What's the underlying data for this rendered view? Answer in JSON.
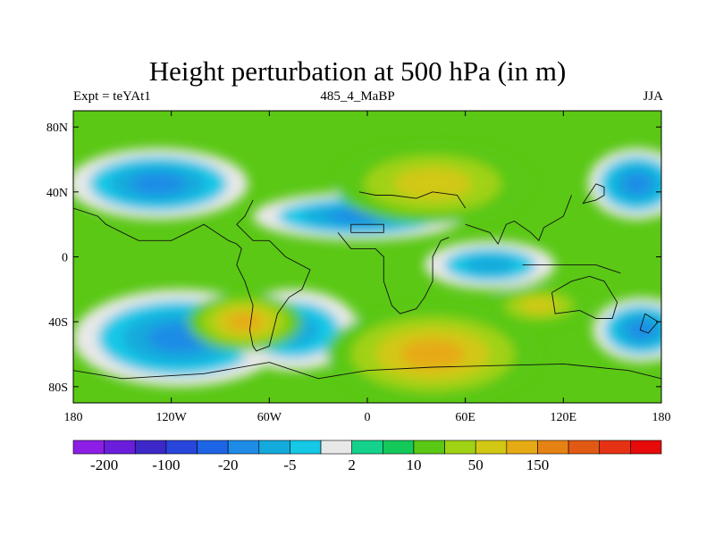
{
  "chart_data": {
    "type": "heatmap",
    "title": "Height perturbation at 500 hPa (in m)",
    "left_label": "Expt = teYAt1",
    "center_label": "485_4_MaBP",
    "right_label": "JJA",
    "x_ticks": [
      {
        "value": -180,
        "label": "180"
      },
      {
        "value": -120,
        "label": "120W"
      },
      {
        "value": -60,
        "label": "60W"
      },
      {
        "value": 0,
        "label": "0"
      },
      {
        "value": 60,
        "label": "60E"
      },
      {
        "value": 120,
        "label": "120E"
      },
      {
        "value": 180,
        "label": "180"
      }
    ],
    "y_ticks": [
      {
        "value": 80,
        "label": "80N"
      },
      {
        "value": 40,
        "label": "40N"
      },
      {
        "value": 0,
        "label": "0"
      },
      {
        "value": -40,
        "label": "40S"
      },
      {
        "value": -80,
        "label": "80S"
      }
    ],
    "xlim": [
      -180,
      180
    ],
    "ylim": [
      -90,
      90
    ],
    "colorbar": {
      "colors": [
        "#8c1ee6",
        "#6a1edc",
        "#3c28c8",
        "#2846dc",
        "#1e64e6",
        "#1e8ce6",
        "#14aadc",
        "#14c8e6",
        "#e8e8e8",
        "#14d28c",
        "#14c85a",
        "#5ac814",
        "#a0d214",
        "#d2c814",
        "#e6aa14",
        "#e68214",
        "#e05a14",
        "#e63214",
        "#e60a0a"
      ],
      "labels": [
        {
          "boundary": 1,
          "text": "-200"
        },
        {
          "boundary": 3,
          "text": "-100"
        },
        {
          "boundary": 5,
          "text": "-20"
        },
        {
          "boundary": 7,
          "text": "-5"
        },
        {
          "boundary": 9,
          "text": "2"
        },
        {
          "boundary": 11,
          "text": "10"
        },
        {
          "boundary": 13,
          "text": "50"
        },
        {
          "boundary": 15,
          "text": "150"
        }
      ]
    },
    "anomalies": [
      {
        "lon": -128,
        "lat": 45,
        "rx": 55,
        "ry": 22,
        "level": -3
      },
      {
        "lon": 165,
        "lat": 45,
        "rx": 30,
        "ry": 22,
        "level": -3
      },
      {
        "lon": -5,
        "lat": 25,
        "rx": 65,
        "ry": 15,
        "level": -3
      },
      {
        "lon": 75,
        "lat": -5,
        "rx": 40,
        "ry": 15,
        "level": -2
      },
      {
        "lon": -115,
        "lat": -50,
        "rx": 65,
        "ry": 30,
        "level": -3
      },
      {
        "lon": -45,
        "lat": -45,
        "rx": 40,
        "ry": 25,
        "level": -2
      },
      {
        "lon": 168,
        "lat": -45,
        "rx": 30,
        "ry": 20,
        "level": -3
      },
      {
        "lon": 40,
        "lat": 45,
        "rx": 60,
        "ry": 25,
        "level": 2
      },
      {
        "lon": -75,
        "lat": -40,
        "rx": 35,
        "ry": 18,
        "level": 3
      },
      {
        "lon": 40,
        "lat": -60,
        "rx": 65,
        "ry": 30,
        "level": 3
      },
      {
        "lon": 105,
        "lat": -30,
        "rx": 30,
        "ry": 12,
        "level": 2
      }
    ]
  }
}
